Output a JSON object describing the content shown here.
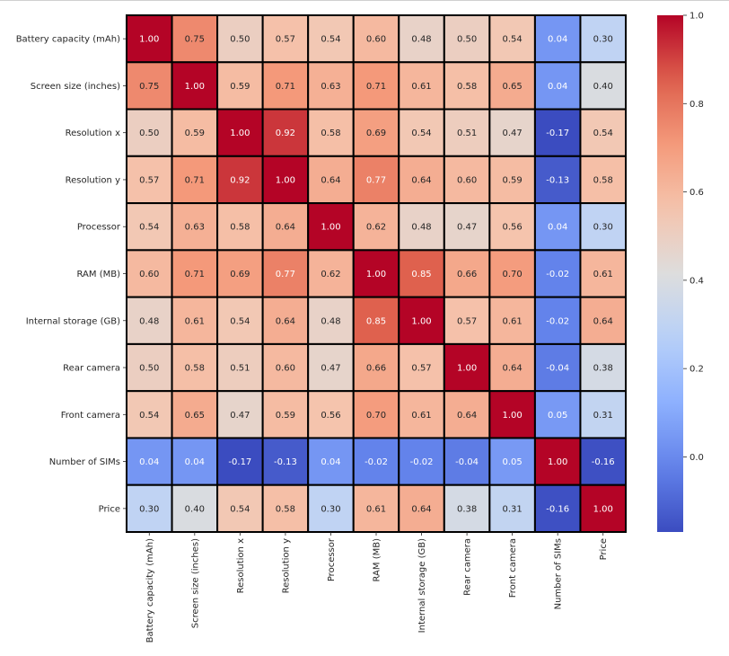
{
  "chart_data": {
    "type": "heatmap",
    "title": "",
    "xlabel": "",
    "ylabel": "",
    "colormap": "coolwarm",
    "vmin": -0.17,
    "vmax": 1.0,
    "annot_format": "0.00",
    "labels": [
      "Battery capacity (mAh)",
      "Screen size (inches)",
      "Resolution x",
      "Resolution y",
      "Processor",
      "RAM (MB)",
      "Internal storage (GB)",
      "Rear camera",
      "Front camera",
      "Number of SIMs",
      "Price"
    ],
    "matrix": [
      [
        1.0,
        0.75,
        0.5,
        0.57,
        0.54,
        0.6,
        0.48,
        0.5,
        0.54,
        0.04,
        0.3
      ],
      [
        0.75,
        1.0,
        0.59,
        0.71,
        0.63,
        0.71,
        0.61,
        0.58,
        0.65,
        0.04,
        0.4
      ],
      [
        0.5,
        0.59,
        1.0,
        0.92,
        0.58,
        0.69,
        0.54,
        0.51,
        0.47,
        -0.17,
        0.54
      ],
      [
        0.57,
        0.71,
        0.92,
        1.0,
        0.64,
        0.77,
        0.64,
        0.6,
        0.59,
        -0.13,
        0.58
      ],
      [
        0.54,
        0.63,
        0.58,
        0.64,
        1.0,
        0.62,
        0.48,
        0.47,
        0.56,
        0.04,
        0.3
      ],
      [
        0.6,
        0.71,
        0.69,
        0.77,
        0.62,
        1.0,
        0.85,
        0.66,
        0.7,
        -0.02,
        0.61
      ],
      [
        0.48,
        0.61,
        0.54,
        0.64,
        0.48,
        0.85,
        1.0,
        0.57,
        0.61,
        -0.02,
        0.64
      ],
      [
        0.5,
        0.58,
        0.51,
        0.6,
        0.47,
        0.66,
        0.57,
        1.0,
        0.64,
        -0.04,
        0.38
      ],
      [
        0.54,
        0.65,
        0.47,
        0.59,
        0.56,
        0.7,
        0.61,
        0.64,
        1.0,
        0.05,
        0.31
      ],
      [
        0.04,
        0.04,
        -0.17,
        -0.13,
        0.04,
        -0.02,
        -0.02,
        -0.04,
        0.05,
        1.0,
        -0.16
      ],
      [
        0.3,
        0.4,
        0.54,
        0.58,
        0.3,
        0.61,
        0.64,
        0.38,
        0.31,
        -0.16,
        1.0
      ]
    ],
    "colorbar": {
      "ticks": [
        0.0,
        0.2,
        0.4,
        0.6,
        0.8,
        1.0
      ],
      "tick_labels": [
        "0.0",
        "0.2",
        "0.4",
        "0.6",
        "0.8",
        "1.0"
      ],
      "placement": "right"
    },
    "grid": false,
    "cell_borders": true
  }
}
